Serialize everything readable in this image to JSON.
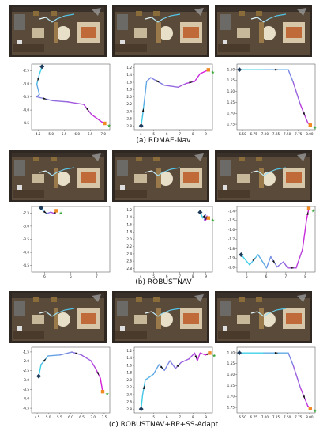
{
  "captions": {
    "a": "(a) RDMAE-Nav",
    "b": "(b) ROBUSTNAV",
    "c": "(c) ROBUSTNAV+RP+SS-Adapt"
  },
  "colors": {
    "room_bg": "#2b2520",
    "path_start": "#3fd0e8",
    "path_end": "#d61ad8",
    "agent_marker": "#1f3b5c",
    "start_marker": "#f08a24",
    "goal_marker": "#3aa83a"
  },
  "chart_data": [
    {
      "type": "line",
      "panel": "a-1",
      "xticks": [
        "4.5",
        "5.0",
        "5.5",
        "6.0",
        "6.5",
        "7.0"
      ],
      "yticks": [
        "-2.5",
        "-3.0",
        "-3.5",
        "-4.0",
        "-4.5"
      ],
      "xlim": [
        4.2,
        7.2
      ],
      "ylim": [
        -4.8,
        -2.2
      ],
      "series": [
        {
          "x": [
            4.6,
            4.5,
            4.4,
            4.5,
            4.4,
            5.0,
            5.6,
            6.2,
            6.5,
            6.9,
            7.0
          ],
          "y": [
            -2.3,
            -2.6,
            -3.0,
            -3.4,
            -3.5,
            -3.65,
            -3.7,
            -3.8,
            -4.2,
            -4.5,
            -4.55
          ]
        }
      ]
    },
    {
      "type": "line",
      "panel": "a-2",
      "xticks": [
        "4",
        "5",
        "6",
        "7",
        "8",
        "9"
      ],
      "yticks": [
        "-1.2",
        "-1.4",
        "-1.6",
        "-1.8",
        "-2.0",
        "-2.2",
        "-2.4",
        "-2.6",
        "-2.8"
      ],
      "xlim": [
        3.8,
        9.5
      ],
      "ylim": [
        -2.85,
        -1.15
      ],
      "series": [
        {
          "x": [
            4.3,
            4.4,
            4.5,
            4.7,
            5.0,
            6.0,
            7.0,
            7.6,
            8.2,
            8.6,
            9.2
          ],
          "y": [
            -2.75,
            -2.5,
            -2.2,
            -1.6,
            -1.5,
            -1.7,
            -1.75,
            -1.65,
            -1.6,
            -1.4,
            -1.3
          ]
        }
      ]
    },
    {
      "type": "line",
      "panel": "a-3",
      "xticks": [
        "6.50",
        "6.75",
        "7.00",
        "7.25",
        "7.50",
        "7.75",
        "8.00"
      ],
      "yticks": [
        "1.50",
        "1.55",
        "1.60",
        "1.65",
        "1.70",
        "1.75"
      ],
      "xlim": [
        6.45,
        8.05
      ],
      "ylim": [
        1.49,
        1.78
      ],
      "series": [
        {
          "x": [
            6.5,
            7.0,
            7.5,
            7.6,
            7.75,
            7.9,
            7.95
          ],
          "y": [
            1.755,
            1.755,
            1.755,
            1.7,
            1.6,
            1.52,
            1.51
          ]
        }
      ]
    },
    {
      "type": "line",
      "panel": "b-1",
      "xticks": [
        "6",
        "5",
        "7"
      ],
      "yticks": [
        "-2.5",
        "-3.0",
        "-3.5",
        "-4.0",
        "-4.5"
      ],
      "xlim": [
        3.5,
        7.6
      ],
      "ylim": [
        -4.6,
        -2.3
      ],
      "series": [
        {
          "x": [
            4.0,
            4.1,
            4.3,
            4.5,
            4.7,
            4.8
          ],
          "y": [
            -2.35,
            -2.45,
            -2.55,
            -2.5,
            -2.55,
            -2.45
          ]
        }
      ]
    },
    {
      "type": "line",
      "panel": "b-2",
      "xticks": [
        "4",
        "5",
        "6",
        "7",
        "8",
        "9"
      ],
      "yticks": [
        "-1.2",
        "-1.4",
        "-1.6",
        "-1.8",
        "-2.0",
        "-2.2",
        "-2.4",
        "-2.6",
        "-2.8"
      ],
      "xlim": [
        3.8,
        9.5
      ],
      "ylim": [
        -2.85,
        -1.15
      ],
      "series": [
        {
          "x": [
            8.6,
            8.8,
            9.0,
            8.9,
            9.1,
            9.0,
            9.2
          ],
          "y": [
            -1.3,
            -1.45,
            -1.35,
            -1.5,
            -1.4,
            -1.5,
            -1.45
          ]
        }
      ]
    },
    {
      "type": "line",
      "panel": "b-3",
      "xticks": [
        "5",
        "6",
        "7",
        "8"
      ],
      "yticks": [
        "-1.4",
        "-1.5",
        "-1.6",
        "-1.7",
        "-1.8",
        "-1.9",
        "-2.0"
      ],
      "xlim": [
        4.6,
        8.3
      ],
      "ylim": [
        -2.02,
        -1.38
      ],
      "series": [
        {
          "x": [
            4.8,
            5.2,
            5.6,
            6.0,
            6.2,
            6.5,
            6.8,
            7.0,
            7.4,
            7.7,
            7.9,
            8.0
          ],
          "y": [
            -1.85,
            -1.95,
            -1.85,
            -1.98,
            -1.87,
            -1.97,
            -1.92,
            -1.98,
            -1.98,
            -1.8,
            -1.5,
            -1.4
          ]
        }
      ]
    },
    {
      "type": "line",
      "panel": "c-1",
      "xticks": [
        "4.5",
        "5.0",
        "5.5",
        "6.0",
        "6.5",
        "7.0",
        "7.5"
      ],
      "yticks": [
        "-1.5",
        "-2.0",
        "-2.5",
        "-3.0",
        "-3.5",
        "-4.0",
        "-4.5"
      ],
      "xlim": [
        4.3,
        7.6
      ],
      "ylim": [
        -4.7,
        -1.3
      ],
      "series": [
        {
          "x": [
            4.6,
            4.7,
            5.0,
            5.5,
            6.0,
            6.4,
            6.8,
            7.0,
            7.2,
            7.3
          ],
          "y": [
            -2.8,
            -2.2,
            -1.75,
            -1.7,
            -1.55,
            -1.7,
            -2.0,
            -2.4,
            -2.9,
            -3.6
          ]
        }
      ]
    },
    {
      "type": "line",
      "panel": "c-2",
      "xticks": [
        "4",
        "5",
        "6",
        "7",
        "8",
        "9"
      ],
      "yticks": [
        "-1.2",
        "-1.4",
        "-1.6",
        "-1.8",
        "-2.0",
        "-2.2",
        "-2.4",
        "-2.6",
        "-2.8"
      ],
      "xlim": [
        3.8,
        9.5
      ],
      "ylim": [
        -2.85,
        -1.15
      ],
      "series": [
        {
          "x": [
            4.3,
            4.4,
            4.6,
            5.2,
            5.6,
            6.0,
            6.4,
            6.8,
            7.2,
            7.8,
            8.2,
            8.4,
            8.6,
            9.0,
            9.3
          ],
          "y": [
            -2.75,
            -2.4,
            -2.0,
            -1.85,
            -1.6,
            -1.75,
            -1.5,
            -1.7,
            -1.55,
            -1.45,
            -1.3,
            -1.5,
            -1.3,
            -1.35,
            -1.3
          ]
        }
      ]
    },
    {
      "type": "line",
      "panel": "c-3",
      "xticks": [
        "6.50",
        "6.75",
        "7.00",
        "7.25",
        "7.50",
        "7.75",
        "8.00"
      ],
      "yticks": [
        "1.50",
        "1.55",
        "1.60",
        "1.65",
        "1.70",
        "1.75"
      ],
      "xlim": [
        6.45,
        8.05
      ],
      "ylim": [
        1.49,
        1.78
      ],
      "series": [
        {
          "x": [
            6.5,
            7.0,
            7.5,
            7.6,
            7.75,
            7.9,
            7.95
          ],
          "y": [
            1.755,
            1.755,
            1.755,
            1.7,
            1.6,
            1.52,
            1.51
          ]
        }
      ]
    }
  ]
}
